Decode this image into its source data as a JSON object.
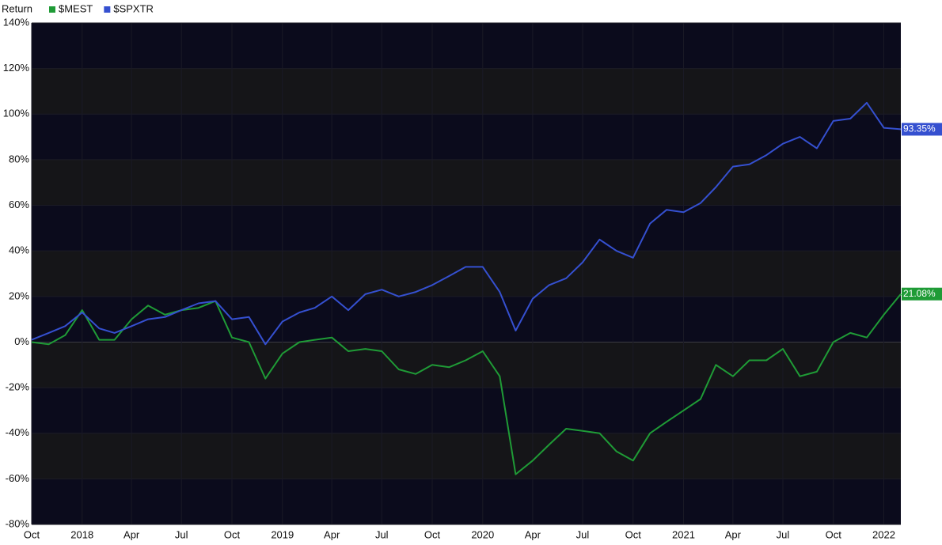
{
  "chart_data": {
    "type": "line",
    "ylabel": "Return",
    "x": [
      "2017-10",
      "2017-11",
      "2017-12",
      "2018-01",
      "2018-02",
      "2018-03",
      "2018-04",
      "2018-05",
      "2018-06",
      "2018-07",
      "2018-08",
      "2018-09",
      "2018-10",
      "2018-11",
      "2018-12",
      "2019-01",
      "2019-02",
      "2019-03",
      "2019-04",
      "2019-05",
      "2019-06",
      "2019-07",
      "2019-08",
      "2019-09",
      "2019-10",
      "2019-11",
      "2019-12",
      "2020-01",
      "2020-02",
      "2020-03",
      "2020-04",
      "2020-05",
      "2020-06",
      "2020-07",
      "2020-08",
      "2020-09",
      "2020-10",
      "2020-11",
      "2020-12",
      "2021-01",
      "2021-02",
      "2021-03",
      "2021-04",
      "2021-05",
      "2021-06",
      "2021-07",
      "2021-08",
      "2021-09",
      "2021-10",
      "2021-11",
      "2021-12",
      "2022-01",
      "2022-02"
    ],
    "series": [
      {
        "name": "$MEST",
        "color": "#1f9b36",
        "values": [
          0,
          -1,
          3,
          14,
          1,
          1,
          10,
          16,
          12,
          14,
          15,
          18,
          2,
          0,
          -16,
          -5,
          0,
          1,
          2,
          -4,
          -3,
          -4,
          -12,
          -14,
          -10,
          -11,
          -8,
          -4,
          -15,
          -58,
          -52,
          -45,
          -38,
          -39,
          -40,
          -48,
          -52,
          -40,
          -35,
          -30,
          -25,
          -10,
          -15,
          -8,
          -8,
          -3,
          -15,
          -13,
          0,
          4,
          2,
          12,
          21.08
        ],
        "value_labels": [
          null,
          null,
          null,
          null,
          null,
          null,
          null,
          null,
          null,
          null,
          null,
          null,
          null,
          null,
          null,
          null,
          null,
          null,
          null,
          null,
          null,
          null,
          null,
          null,
          null,
          null,
          null,
          null,
          null,
          null,
          null,
          null,
          null,
          null,
          null,
          null,
          null,
          null,
          null,
          null,
          null,
          null,
          null,
          null,
          null,
          null,
          null,
          null,
          null,
          null,
          null,
          null,
          "21.08%"
        ]
      },
      {
        "name": "$SPXTR",
        "color": "#3550d0",
        "values": [
          1,
          4,
          7,
          13,
          6,
          4,
          7,
          10,
          11,
          14,
          17,
          18,
          10,
          11,
          -1,
          9,
          13,
          15,
          20,
          14,
          21,
          23,
          20,
          22,
          25,
          29,
          33,
          33,
          22,
          5,
          19,
          25,
          28,
          35,
          45,
          40,
          37,
          52,
          58,
          57,
          61,
          68,
          77,
          78,
          82,
          87,
          90,
          85,
          97,
          98,
          105,
          94,
          93.35
        ],
        "value_labels": [
          null,
          null,
          null,
          null,
          null,
          null,
          null,
          null,
          null,
          null,
          null,
          null,
          null,
          null,
          null,
          null,
          null,
          null,
          null,
          null,
          null,
          null,
          null,
          null,
          null,
          null,
          null,
          null,
          null,
          null,
          null,
          null,
          null,
          null,
          null,
          null,
          null,
          null,
          null,
          null,
          null,
          null,
          null,
          null,
          null,
          null,
          null,
          null,
          null,
          null,
          null,
          null,
          "93.35%"
        ]
      }
    ],
    "xlim": [
      "2017-10",
      "2022-02"
    ],
    "xticks": [
      {
        "value": "2017-10",
        "label": "Oct"
      },
      {
        "value": "2018-01",
        "label": "2018"
      },
      {
        "value": "2018-04",
        "label": "Apr"
      },
      {
        "value": "2018-07",
        "label": "Jul"
      },
      {
        "value": "2018-10",
        "label": "Oct"
      },
      {
        "value": "2019-01",
        "label": "2019"
      },
      {
        "value": "2019-04",
        "label": "Apr"
      },
      {
        "value": "2019-07",
        "label": "Jul"
      },
      {
        "value": "2019-10",
        "label": "Oct"
      },
      {
        "value": "2020-01",
        "label": "2020"
      },
      {
        "value": "2020-04",
        "label": "Apr"
      },
      {
        "value": "2020-07",
        "label": "Jul"
      },
      {
        "value": "2020-10",
        "label": "Oct"
      },
      {
        "value": "2021-01",
        "label": "2021"
      },
      {
        "value": "2021-04",
        "label": "Apr"
      },
      {
        "value": "2021-07",
        "label": "Jul"
      },
      {
        "value": "2021-10",
        "label": "Oct"
      },
      {
        "value": "2022-01",
        "label": "2022"
      }
    ],
    "ylim": [
      -80,
      140
    ],
    "yticks": [
      {
        "value": -80,
        "label": "-80%"
      },
      {
        "value": -60,
        "label": "-60%"
      },
      {
        "value": -40,
        "label": "-40%"
      },
      {
        "value": -20,
        "label": "-20%"
      },
      {
        "value": 0,
        "label": "0%"
      },
      {
        "value": 20,
        "label": "20%"
      },
      {
        "value": 40,
        "label": "40%"
      },
      {
        "value": 60,
        "label": "60%"
      },
      {
        "value": 80,
        "label": "80%"
      },
      {
        "value": 100,
        "label": "100%"
      },
      {
        "value": 120,
        "label": "120%"
      },
      {
        "value": 140,
        "label": "140%"
      }
    ],
    "grid": true
  }
}
